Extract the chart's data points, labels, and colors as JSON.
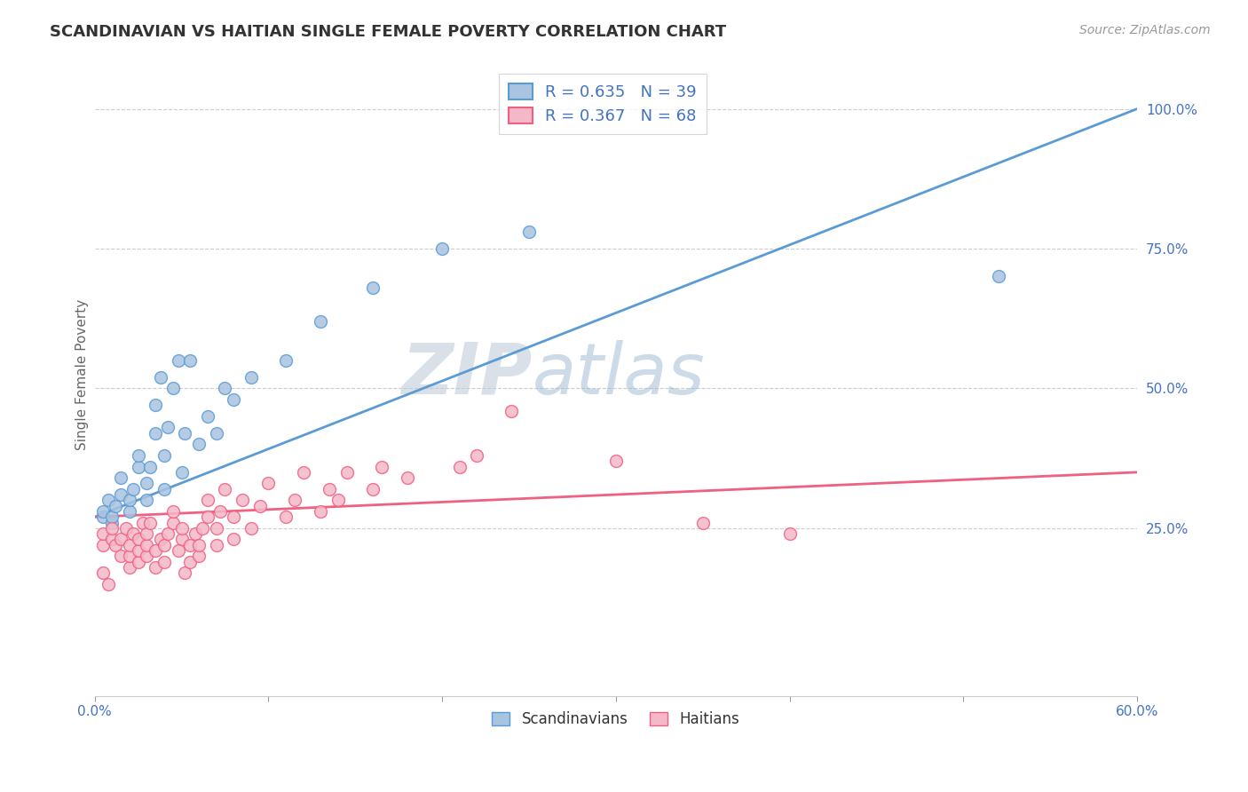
{
  "title": "SCANDINAVIAN VS HAITIAN SINGLE FEMALE POVERTY CORRELATION CHART",
  "source": "Source: ZipAtlas.com",
  "ylabel": "Single Female Poverty",
  "xlim": [
    0.0,
    60.0
  ],
  "ylim": [
    -5.0,
    110.0
  ],
  "xtick_labels": [
    "0.0%",
    "",
    "",
    "",
    "",
    "",
    "60.0%"
  ],
  "xtick_values": [
    0.0,
    10.0,
    20.0,
    30.0,
    40.0,
    50.0,
    60.0
  ],
  "ytick_labels": [
    "25.0%",
    "50.0%",
    "75.0%",
    "100.0%"
  ],
  "ytick_values": [
    25.0,
    50.0,
    75.0,
    100.0
  ],
  "legend_line1": "R = 0.635   N = 39",
  "legend_line2": "R = 0.367   N = 68",
  "legend_labels": [
    "Scandinavians",
    "Haitians"
  ],
  "watermark_zip": "ZIP",
  "watermark_atlas": "atlas",
  "color_scandinavian": "#a8c4e0",
  "color_haitian": "#f4b8c8",
  "color_line_scandinavian": "#5b9bd5",
  "color_line_haitian": "#f06080",
  "color_legend_text_blue": "#4472c4",
  "color_legend_text_black": "#333333",
  "background_color": "#ffffff",
  "scandinavian_points": [
    [
      0.5,
      27
    ],
    [
      0.5,
      28
    ],
    [
      0.8,
      30
    ],
    [
      1.0,
      26
    ],
    [
      1.0,
      27
    ],
    [
      1.2,
      29
    ],
    [
      1.5,
      31
    ],
    [
      1.5,
      34
    ],
    [
      2.0,
      28
    ],
    [
      2.0,
      30
    ],
    [
      2.2,
      32
    ],
    [
      2.5,
      36
    ],
    [
      2.5,
      38
    ],
    [
      3.0,
      30
    ],
    [
      3.0,
      33
    ],
    [
      3.2,
      36
    ],
    [
      3.5,
      42
    ],
    [
      3.5,
      47
    ],
    [
      3.8,
      52
    ],
    [
      4.0,
      32
    ],
    [
      4.0,
      38
    ],
    [
      4.2,
      43
    ],
    [
      4.5,
      50
    ],
    [
      4.8,
      55
    ],
    [
      5.0,
      35
    ],
    [
      5.2,
      42
    ],
    [
      5.5,
      55
    ],
    [
      6.0,
      40
    ],
    [
      6.5,
      45
    ],
    [
      7.0,
      42
    ],
    [
      7.5,
      50
    ],
    [
      8.0,
      48
    ],
    [
      9.0,
      52
    ],
    [
      11.0,
      55
    ],
    [
      13.0,
      62
    ],
    [
      16.0,
      68
    ],
    [
      20.0,
      75
    ],
    [
      25.0,
      78
    ],
    [
      52.0,
      70
    ]
  ],
  "haitian_points": [
    [
      0.5,
      22
    ],
    [
      0.5,
      24
    ],
    [
      0.5,
      17
    ],
    [
      0.8,
      15
    ],
    [
      1.0,
      23
    ],
    [
      1.0,
      25
    ],
    [
      1.2,
      22
    ],
    [
      1.5,
      20
    ],
    [
      1.5,
      23
    ],
    [
      1.8,
      25
    ],
    [
      2.0,
      18
    ],
    [
      2.0,
      20
    ],
    [
      2.0,
      22
    ],
    [
      2.2,
      24
    ],
    [
      2.5,
      19
    ],
    [
      2.5,
      21
    ],
    [
      2.5,
      23
    ],
    [
      2.8,
      26
    ],
    [
      3.0,
      20
    ],
    [
      3.0,
      22
    ],
    [
      3.0,
      24
    ],
    [
      3.2,
      26
    ],
    [
      3.5,
      18
    ],
    [
      3.5,
      21
    ],
    [
      3.8,
      23
    ],
    [
      4.0,
      19
    ],
    [
      4.0,
      22
    ],
    [
      4.2,
      24
    ],
    [
      4.5,
      26
    ],
    [
      4.5,
      28
    ],
    [
      4.8,
      21
    ],
    [
      5.0,
      23
    ],
    [
      5.0,
      25
    ],
    [
      5.2,
      17
    ],
    [
      5.5,
      19
    ],
    [
      5.5,
      22
    ],
    [
      5.8,
      24
    ],
    [
      6.0,
      20
    ],
    [
      6.0,
      22
    ],
    [
      6.2,
      25
    ],
    [
      6.5,
      27
    ],
    [
      6.5,
      30
    ],
    [
      7.0,
      22
    ],
    [
      7.0,
      25
    ],
    [
      7.2,
      28
    ],
    [
      7.5,
      32
    ],
    [
      8.0,
      23
    ],
    [
      8.0,
      27
    ],
    [
      8.5,
      30
    ],
    [
      9.0,
      25
    ],
    [
      9.5,
      29
    ],
    [
      10.0,
      33
    ],
    [
      11.0,
      27
    ],
    [
      11.5,
      30
    ],
    [
      12.0,
      35
    ],
    [
      13.0,
      28
    ],
    [
      13.5,
      32
    ],
    [
      14.0,
      30
    ],
    [
      14.5,
      35
    ],
    [
      16.0,
      32
    ],
    [
      16.5,
      36
    ],
    [
      18.0,
      34
    ],
    [
      21.0,
      36
    ],
    [
      22.0,
      38
    ],
    [
      24.0,
      46
    ],
    [
      30.0,
      37
    ],
    [
      35.0,
      26
    ],
    [
      40.0,
      24
    ]
  ],
  "scand_trend_x": [
    0.0,
    60.0
  ],
  "scand_trend_y": [
    27.0,
    100.0
  ],
  "haiti_trend_x": [
    0.0,
    60.0
  ],
  "haiti_trend_y": [
    27.0,
    35.0
  ]
}
